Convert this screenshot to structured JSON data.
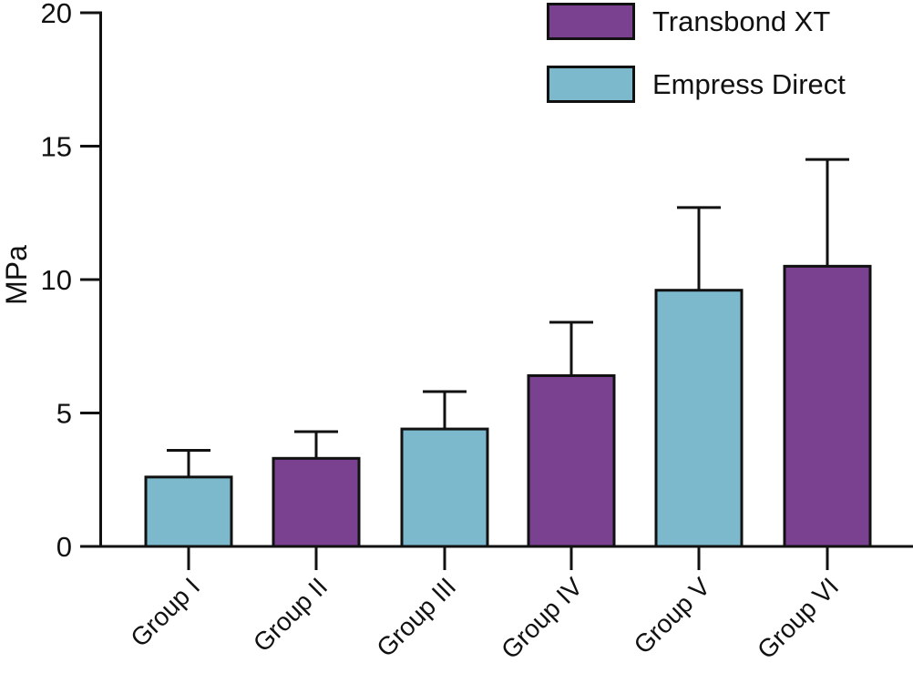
{
  "legend": {
    "items": [
      {
        "label": "Transbond XT",
        "color": "#7a4190"
      },
      {
        "label": "Empress Direct",
        "color": "#7db9cd"
      }
    ]
  },
  "chart_data": {
    "type": "bar",
    "title": "",
    "xlabel": "",
    "ylabel": "MPa",
    "categories": [
      "Group I",
      "Group II",
      "Group III",
      "Group IV",
      "Group V",
      "Group VI"
    ],
    "values": [
      2.6,
      3.3,
      4.4,
      6.4,
      9.6,
      10.5
    ],
    "errors_upper": [
      1.0,
      1.0,
      1.4,
      2.0,
      3.1,
      4.0
    ],
    "series_by_bar": [
      "Empress Direct",
      "Transbond XT",
      "Empress Direct",
      "Transbond XT",
      "Empress Direct",
      "Transbond XT"
    ],
    "colors": {
      "Transbond XT": "#7a4190",
      "Empress Direct": "#7db9cd"
    },
    "ylim": [
      0,
      20
    ],
    "yticks": [
      0,
      5,
      10,
      15,
      20
    ],
    "grid": false,
    "legend_position": "top-right",
    "legend_entries": [
      "Transbond XT",
      "Empress Direct"
    ],
    "bar_edge_color": "#111111",
    "axis_color": "#111111"
  }
}
